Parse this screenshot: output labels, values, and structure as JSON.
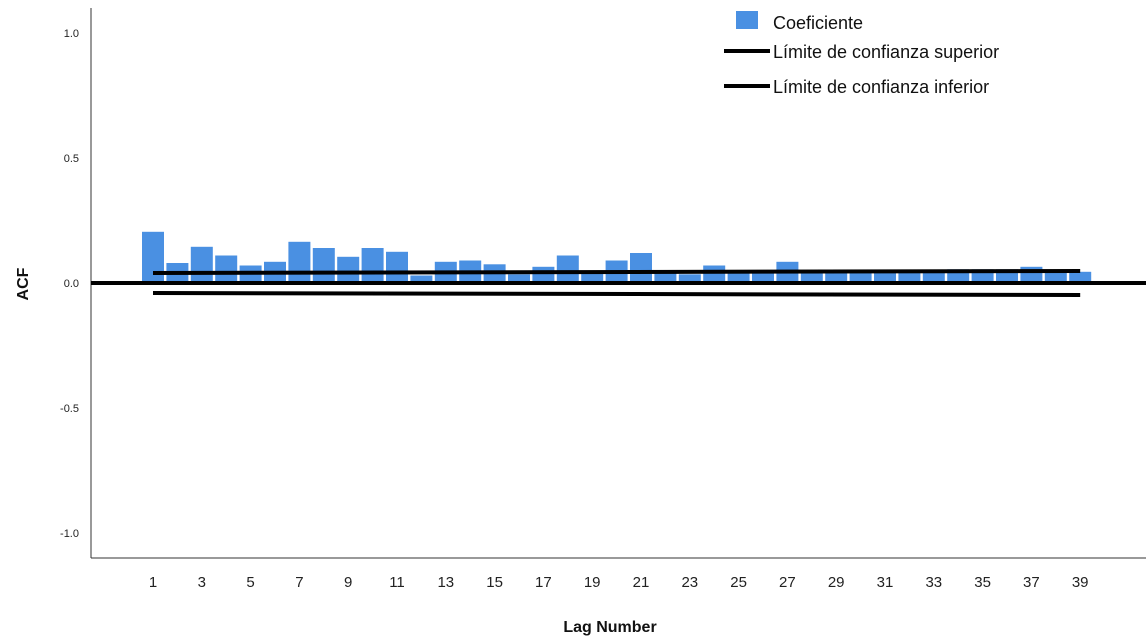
{
  "chart_data": {
    "type": "bar",
    "title": "",
    "xlabel": "Lag Number",
    "ylabel": "ACF",
    "ylim": [
      -1.1,
      1.1
    ],
    "yticks": [
      "1.0",
      "0.5",
      "0.0",
      "-0.5",
      "-1.0"
    ],
    "ytick_values": [
      1.0,
      0.5,
      0.0,
      -0.5,
      -1.0
    ],
    "xticks": [
      "1",
      "3",
      "5",
      "7",
      "9",
      "11",
      "13",
      "15",
      "17",
      "19",
      "21",
      "23",
      "25",
      "27",
      "29",
      "31",
      "33",
      "35",
      "37",
      "39"
    ],
    "xtick_values": [
      1,
      3,
      5,
      7,
      9,
      11,
      13,
      15,
      17,
      19,
      21,
      23,
      25,
      27,
      29,
      31,
      33,
      35,
      37,
      39
    ],
    "grid": false,
    "legend_position": "top-right",
    "series": [
      {
        "name": "Coeficiente",
        "color": "#4a90e2",
        "x": [
          1,
          2,
          3,
          4,
          5,
          6,
          7,
          8,
          9,
          10,
          11,
          12,
          13,
          14,
          15,
          16,
          17,
          18,
          19,
          20,
          21,
          22,
          23,
          24,
          25,
          26,
          27,
          28,
          29,
          30,
          31,
          32,
          33,
          34,
          35,
          36,
          37,
          38,
          39
        ],
        "values": [
          0.205,
          0.08,
          0.145,
          0.11,
          0.07,
          0.085,
          0.165,
          0.14,
          0.105,
          0.14,
          0.125,
          0.03,
          0.085,
          0.09,
          0.075,
          0.035,
          0.065,
          0.11,
          0.045,
          0.09,
          0.12,
          0.045,
          0.035,
          0.07,
          0.05,
          0.04,
          0.085,
          0.04,
          0.04,
          0.04,
          0.045,
          0.05,
          0.05,
          0.055,
          0.055,
          0.055,
          0.065,
          0.05,
          0.045
        ]
      },
      {
        "name": "Límite de confianza superior",
        "color": "#000000",
        "x": [
          1,
          39
        ],
        "values": [
          0.04,
          0.048
        ]
      },
      {
        "name": "Límite de confianza inferior",
        "color": "#000000",
        "x": [
          1,
          39
        ],
        "values": [
          -0.04,
          -0.048
        ]
      }
    ]
  }
}
